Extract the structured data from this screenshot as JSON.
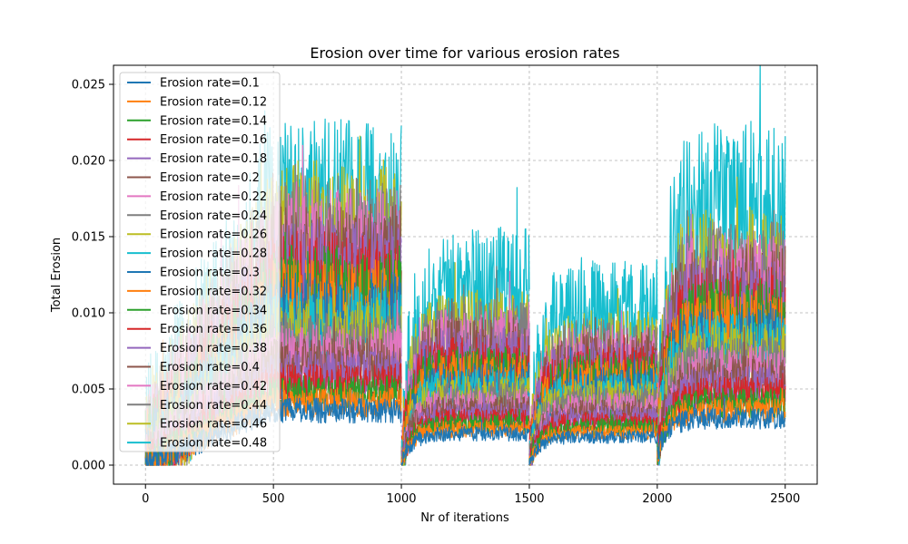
{
  "chart_data": {
    "type": "line",
    "title": "Erosion over time for various erosion rates",
    "xlabel": "Nr of iterations",
    "ylabel": "Total Erosion",
    "xlim": [
      -125,
      2625
    ],
    "ylim": [
      -0.00125,
      0.02625
    ],
    "xticks": [
      0,
      500,
      1000,
      1500,
      2000,
      2500
    ],
    "xtick_labels": [
      "0",
      "500",
      "1000",
      "1500",
      "2000",
      "2500"
    ],
    "yticks": [
      0.0,
      0.005,
      0.01,
      0.015,
      0.02,
      0.025
    ],
    "ytick_labels": [
      "0.000",
      "0.005",
      "0.010",
      "0.015",
      "0.020",
      "0.025"
    ],
    "grid": true,
    "legend_position": "top-left",
    "segments": [
      [
        0,
        1000
      ],
      [
        1000,
        1500
      ],
      [
        1500,
        2000
      ],
      [
        2000,
        2500
      ]
    ],
    "segment_start_value": [
      0.0,
      0.0,
      0.0,
      0.0007
    ],
    "series": [
      {
        "name": "Erosion rate=0.1",
        "rate": 0.1,
        "color": "#1f77b4",
        "level": [
          0.0035,
          0.002,
          0.0018,
          0.003
        ]
      },
      {
        "name": "Erosion rate=0.12",
        "rate": 0.12,
        "color": "#ff7f0e",
        "level": [
          0.004,
          0.0023,
          0.0021,
          0.0035
        ]
      },
      {
        "name": "Erosion rate=0.14",
        "rate": 0.14,
        "color": "#2ca02c",
        "level": [
          0.0046,
          0.0026,
          0.0024,
          0.004
        ]
      },
      {
        "name": "Erosion rate=0.16",
        "rate": 0.16,
        "color": "#d62728",
        "level": [
          0.0052,
          0.0029,
          0.0027,
          0.0045
        ]
      },
      {
        "name": "Erosion rate=0.18",
        "rate": 0.18,
        "color": "#9467bd",
        "level": [
          0.0058,
          0.0032,
          0.003,
          0.005
        ]
      },
      {
        "name": "Erosion rate=0.2",
        "rate": 0.2,
        "color": "#8c564b",
        "level": [
          0.0064,
          0.0035,
          0.0033,
          0.0055
        ]
      },
      {
        "name": "Erosion rate=0.22",
        "rate": 0.22,
        "color": "#e377c2",
        "level": [
          0.007,
          0.0038,
          0.0036,
          0.006
        ]
      },
      {
        "name": "Erosion rate=0.24",
        "rate": 0.24,
        "color": "#7f7f7f",
        "level": [
          0.0076,
          0.0041,
          0.0039,
          0.0065
        ]
      },
      {
        "name": "Erosion rate=0.26",
        "rate": 0.26,
        "color": "#bcbd22",
        "level": [
          0.0082,
          0.0044,
          0.0042,
          0.007
        ]
      },
      {
        "name": "Erosion rate=0.28",
        "rate": 0.28,
        "color": "#17becf",
        "level": [
          0.0088,
          0.0047,
          0.0045,
          0.0075
        ]
      },
      {
        "name": "Erosion rate=0.3",
        "rate": 0.3,
        "color": "#1f77b4",
        "level": [
          0.0094,
          0.005,
          0.0048,
          0.008
        ]
      },
      {
        "name": "Erosion rate=0.32",
        "rate": 0.32,
        "color": "#ff7f0e",
        "level": [
          0.01,
          0.0054,
          0.0051,
          0.0085
        ]
      },
      {
        "name": "Erosion rate=0.34",
        "rate": 0.34,
        "color": "#2ca02c",
        "level": [
          0.0106,
          0.0058,
          0.0054,
          0.009
        ]
      },
      {
        "name": "Erosion rate=0.36",
        "rate": 0.36,
        "color": "#d62728",
        "level": [
          0.0112,
          0.0062,
          0.0057,
          0.0095
        ]
      },
      {
        "name": "Erosion rate=0.38",
        "rate": 0.38,
        "color": "#9467bd",
        "level": [
          0.0118,
          0.0066,
          0.006,
          0.01
        ]
      },
      {
        "name": "Erosion rate=0.4",
        "rate": 0.4,
        "color": "#8c564b",
        "level": [
          0.0124,
          0.007,
          0.0063,
          0.0105
        ]
      },
      {
        "name": "Erosion rate=0.42",
        "rate": 0.42,
        "color": "#e377c2",
        "level": [
          0.013,
          0.0074,
          0.0066,
          0.011
        ]
      },
      {
        "name": "Erosion rate=0.44",
        "rate": 0.44,
        "color": "#7f7f7f",
        "level": [
          0.0136,
          0.0078,
          0.0069,
          0.0115
        ]
      },
      {
        "name": "Erosion rate=0.46",
        "rate": 0.46,
        "color": "#bcbd22",
        "level": [
          0.0142,
          0.0082,
          0.0072,
          0.012
        ]
      },
      {
        "name": "Erosion rate=0.48",
        "rate": 0.48,
        "color": "#17becf",
        "level": [
          0.016,
          0.011,
          0.0095,
          0.016
        ]
      }
    ]
  }
}
